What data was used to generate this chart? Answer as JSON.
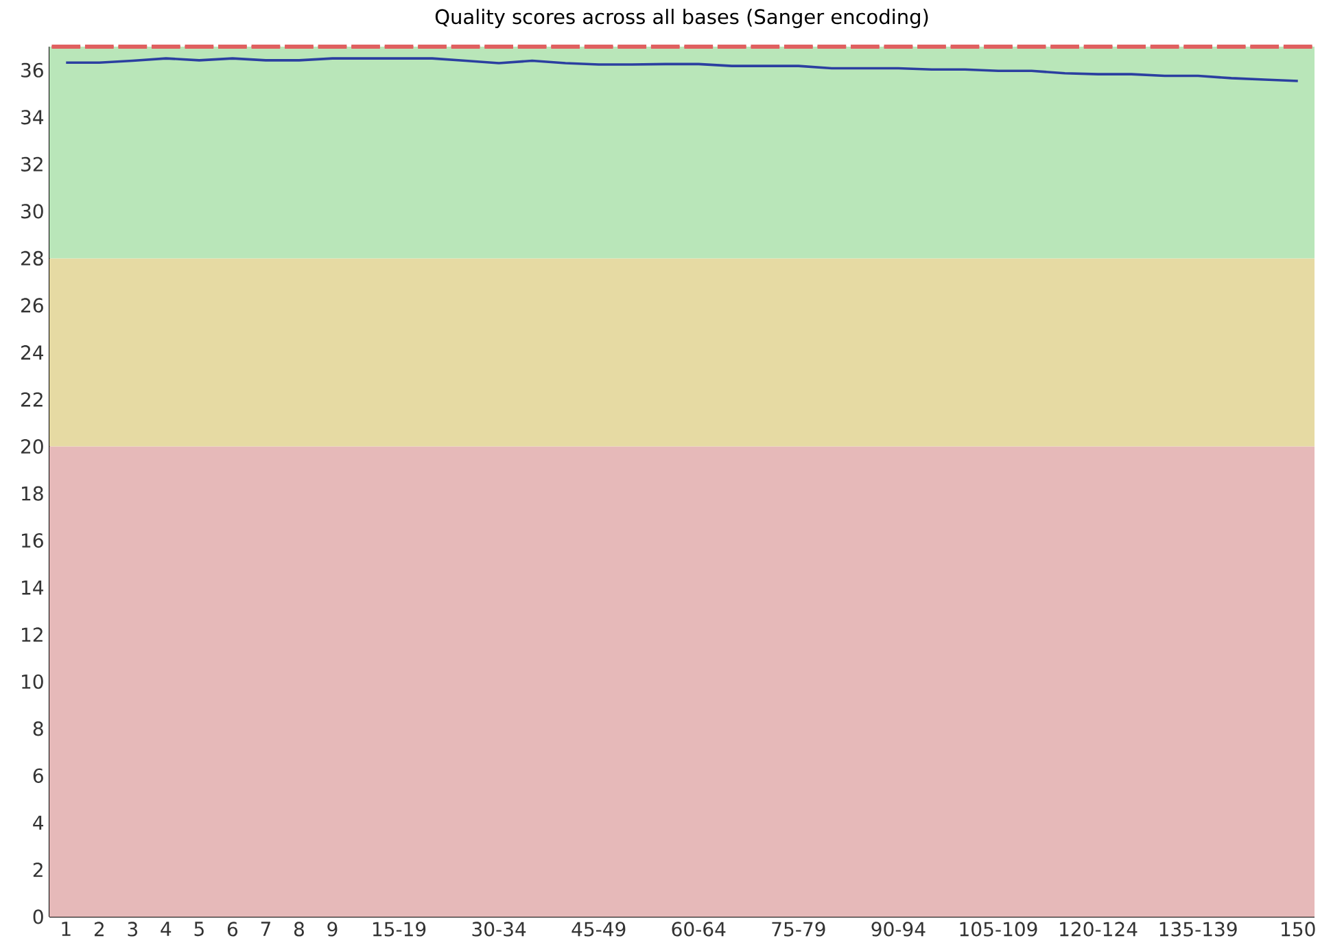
{
  "chart_data": {
    "type": "box",
    "title": "Quality scores across all bases (Sanger encoding)",
    "categories": [
      "1",
      "2",
      "3",
      "4",
      "5",
      "6",
      "7",
      "8",
      "9",
      null,
      "15-19",
      null,
      null,
      "30-34",
      null,
      null,
      "45-49",
      null,
      null,
      "60-64",
      null,
      null,
      "75-79",
      null,
      null,
      "90-94",
      null,
      null,
      "105-109",
      null,
      null,
      "120-124",
      null,
      null,
      "135-139",
      null,
      null,
      "150"
    ],
    "ylim": [
      0,
      37
    ],
    "yticks": [
      0,
      2,
      4,
      6,
      8,
      10,
      12,
      14,
      16,
      18,
      20,
      22,
      24,
      26,
      28,
      30,
      32,
      34,
      36
    ],
    "bands": [
      {
        "axis": "y",
        "from": 0,
        "to": 20,
        "color": "#e6b9b9"
      },
      {
        "axis": "y",
        "from": 20,
        "to": 28,
        "color": "#e6daa3"
      },
      {
        "axis": "y",
        "from": 28,
        "to": 37,
        "color": "#b9e6b9"
      }
    ],
    "series": [
      {
        "color": "#e06060",
        "boxes": [
          {
            "low": 37,
            "q1": 37,
            "median": 37,
            "q3": 37,
            "high": 37
          },
          {
            "low": 37,
            "q1": 37,
            "median": 37,
            "q3": 37,
            "high": 37
          },
          {
            "low": 37,
            "q1": 37,
            "median": 37,
            "q3": 37,
            "high": 37
          },
          {
            "low": 37,
            "q1": 37,
            "median": 37,
            "q3": 37,
            "high": 37
          },
          {
            "low": 37,
            "q1": 37,
            "median": 37,
            "q3": 37,
            "high": 37
          },
          {
            "low": 37,
            "q1": 37,
            "median": 37,
            "q3": 37,
            "high": 37
          },
          {
            "low": 37,
            "q1": 37,
            "median": 37,
            "q3": 37,
            "high": 37
          },
          {
            "low": 37,
            "q1": 37,
            "median": 37,
            "q3": 37,
            "high": 37
          },
          {
            "low": 37,
            "q1": 37,
            "median": 37,
            "q3": 37,
            "high": 37
          },
          {
            "low": 37,
            "q1": 37,
            "median": 37,
            "q3": 37,
            "high": 37
          },
          {
            "low": 37,
            "q1": 37,
            "median": 37,
            "q3": 37,
            "high": 37
          },
          {
            "low": 37,
            "q1": 37,
            "median": 37,
            "q3": 37,
            "high": 37
          },
          {
            "low": 37,
            "q1": 37,
            "median": 37,
            "q3": 37,
            "high": 37
          },
          {
            "low": 37,
            "q1": 37,
            "median": 37,
            "q3": 37,
            "high": 37
          },
          {
            "low": 37,
            "q1": 37,
            "median": 37,
            "q3": 37,
            "high": 37
          },
          {
            "low": 37,
            "q1": 37,
            "median": 37,
            "q3": 37,
            "high": 37
          },
          {
            "low": 37,
            "q1": 37,
            "median": 37,
            "q3": 37,
            "high": 37
          },
          {
            "low": 37,
            "q1": 37,
            "median": 37,
            "q3": 37,
            "high": 37
          },
          {
            "low": 37,
            "q1": 37,
            "median": 37,
            "q3": 37,
            "high": 37
          },
          {
            "low": 37,
            "q1": 37,
            "median": 37,
            "q3": 37,
            "high": 37
          },
          {
            "low": 37,
            "q1": 37,
            "median": 37,
            "q3": 37,
            "high": 37
          },
          {
            "low": 37,
            "q1": 37,
            "median": 37,
            "q3": 37,
            "high": 37
          },
          {
            "low": 37,
            "q1": 37,
            "median": 37,
            "q3": 37,
            "high": 37
          },
          {
            "low": 37,
            "q1": 37,
            "median": 37,
            "q3": 37,
            "high": 37
          },
          {
            "low": 37,
            "q1": 37,
            "median": 37,
            "q3": 37,
            "high": 37
          },
          {
            "low": 37,
            "q1": 37,
            "median": 37,
            "q3": 37,
            "high": 37
          },
          {
            "low": 37,
            "q1": 37,
            "median": 37,
            "q3": 37,
            "high": 37
          },
          {
            "low": 37,
            "q1": 37,
            "median": 37,
            "q3": 37,
            "high": 37
          },
          {
            "low": 37,
            "q1": 37,
            "median": 37,
            "q3": 37,
            "high": 37
          },
          {
            "low": 37,
            "q1": 37,
            "median": 37,
            "q3": 37,
            "high": 37
          },
          {
            "low": 37,
            "q1": 37,
            "median": 37,
            "q3": 37,
            "high": 37
          },
          {
            "low": 37,
            "q1": 37,
            "median": 37,
            "q3": 37,
            "high": 37
          },
          {
            "low": 37,
            "q1": 37,
            "median": 37,
            "q3": 37,
            "high": 37
          },
          {
            "low": 37,
            "q1": 37,
            "median": 37,
            "q3": 37,
            "high": 37
          },
          {
            "low": 37,
            "q1": 37,
            "median": 37,
            "q3": 37,
            "high": 37
          },
          {
            "low": 37,
            "q1": 37,
            "median": 37,
            "q3": 37,
            "high": 37
          },
          {
            "low": 37,
            "q1": 37,
            "median": 37,
            "q3": 37,
            "high": 37
          },
          {
            "low": 37,
            "q1": 37,
            "median": 37,
            "q3": 37,
            "high": 37
          }
        ]
      },
      {
        "type": "line",
        "color": "#2b3fa0",
        "values": [
          36.32,
          36.32,
          36.4,
          36.5,
          36.42,
          36.5,
          36.42,
          36.42,
          36.5,
          36.5,
          36.5,
          36.5,
          36.4,
          36.3,
          36.4,
          36.3,
          36.24,
          36.24,
          36.26,
          36.26,
          36.18,
          36.18,
          36.18,
          36.08,
          36.08,
          36.08,
          36.03,
          36.03,
          35.97,
          35.97,
          35.87,
          35.83,
          35.83,
          35.76,
          35.76,
          35.66,
          35.6,
          35.54
        ]
      }
    ]
  }
}
